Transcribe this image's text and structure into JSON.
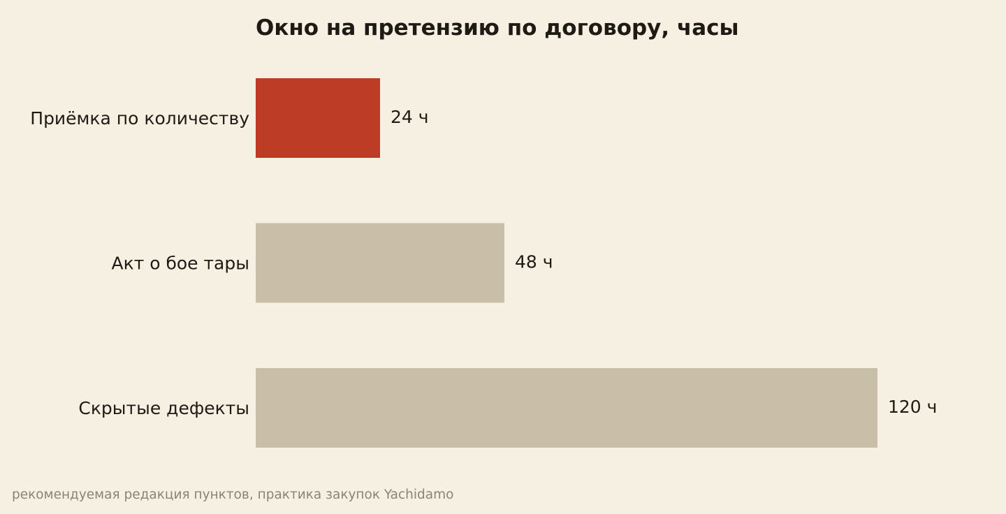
{
  "chart_data": {
    "type": "bar",
    "orientation": "horizontal",
    "title": "Окно на претензию по договору, часы",
    "categories": [
      "Приёмка по количеству",
      "Акт о бое тары",
      "Скрытые дефекты"
    ],
    "values": [
      24,
      48,
      120
    ],
    "value_labels": [
      "24 ч",
      "48 ч",
      "120 ч"
    ],
    "value_unit": "ч",
    "xlim": [
      0,
      120
    ],
    "grid": false,
    "legend": "none",
    "highlight_index": 0
  },
  "footer": {
    "source": "рекомендуемая редакция пунктов, практика закупок Yachidamo"
  },
  "colors": {
    "background": "#f6f0e3",
    "highlight": "#bc3c26",
    "bar": "#c9bfa8",
    "text": "#1e1a14",
    "muted_text": "#8a8478"
  }
}
